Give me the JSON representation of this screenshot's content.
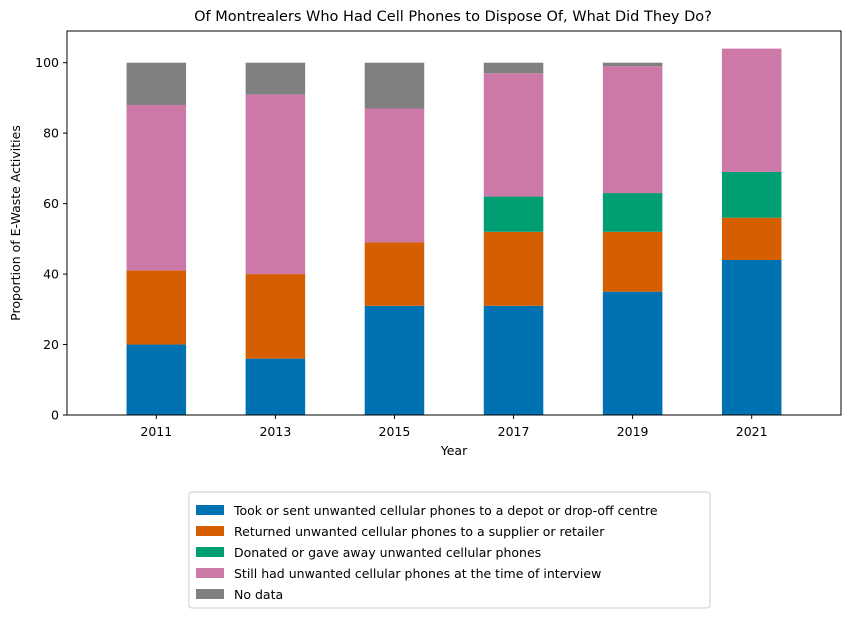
{
  "chart_data": {
    "type": "bar",
    "stacked": true,
    "title": "Of Montrealers Who Had Cell Phones to Dispose Of, What Did They Do?",
    "xlabel": "Year",
    "ylabel": "Proportion of E-Waste Activities",
    "categories": [
      "2011",
      "2013",
      "2015",
      "2017",
      "2019",
      "2021"
    ],
    "ylim": [
      0,
      109
    ],
    "yticks": [
      0,
      20,
      40,
      60,
      80,
      100
    ],
    "grid": false,
    "legend_position": "bottom-center",
    "series": [
      {
        "name": "Took or sent unwanted cellular phones to a depot or drop-off centre",
        "color": "#0072b2",
        "values": [
          20,
          16,
          31,
          31,
          35,
          44
        ]
      },
      {
        "name": "Returned unwanted cellular phones to a supplier or retailer",
        "color": "#d55e00",
        "values": [
          21,
          24,
          18,
          21,
          17,
          12
        ]
      },
      {
        "name": "Donated or gave away unwanted cellular phones",
        "color": "#009e73",
        "values": [
          0,
          0,
          0,
          10,
          11,
          13
        ]
      },
      {
        "name": "Still had unwanted cellular phones at the time of interview",
        "color": "#cc79a7",
        "values": [
          47,
          51,
          38,
          35,
          36,
          35
        ]
      },
      {
        "name": "No data",
        "color": "#808080",
        "values": [
          12,
          9,
          13,
          3,
          1,
          0
        ]
      }
    ]
  }
}
